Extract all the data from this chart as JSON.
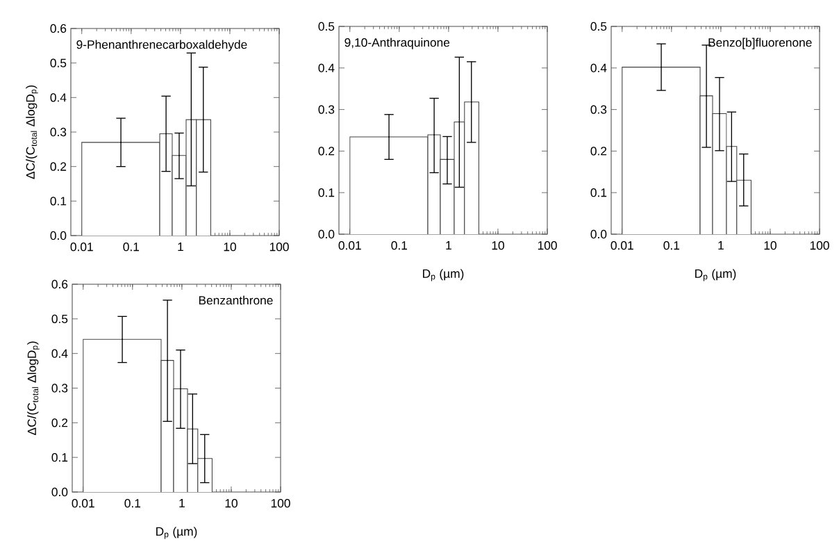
{
  "chart_data": [
    {
      "type": "histogram",
      "title": "9-Phenanthrenecarboxaldehyde",
      "ylabel": "ΔC/(C$_{total}$ ΔlogD$_{p}$)",
      "log": "x",
      "bins": [
        0.01,
        0.38,
        0.68,
        1.3,
        2.1,
        4.1
      ],
      "series": [
        {
          "color": "#404040",
          "values": [
            0.27,
            0.295,
            0.232,
            0.336,
            0.336
          ]
        },
        {
          "type": "scatter",
          "marker": "none",
          "color": "#000000",
          "x": [
            0.062,
            0.51,
            0.94,
            1.65,
            2.9
          ],
          "values": [
            0.27,
            0.295,
            0.232,
            0.336,
            0.336
          ],
          "errors": [
            [
              0.2,
              0.34
            ],
            [
              0.186,
              0.404
            ],
            [
              0.165,
              0.297
            ],
            [
              0.144,
              0.529
            ],
            [
              0.184,
              0.488
            ]
          ]
        }
      ],
      "xlim": [
        0.006,
        100
      ],
      "xticks": [
        0.01,
        0.1,
        1,
        10,
        100
      ],
      "ylim": [
        0,
        0.6
      ],
      "yticks": [
        {
          "value": 0,
          "label": "0.0"
        },
        {
          "value": 0.1,
          "label": "0.1"
        },
        {
          "value": 0.2,
          "label": "0.2"
        },
        {
          "value": 0.3,
          "label": "0.3"
        },
        {
          "value": 0.4,
          "label": "0.4"
        },
        {
          "value": 0.5,
          "label": "0.5"
        },
        {
          "value": 0.6,
          "label": "0.6"
        }
      ]
    },
    {
      "type": "histogram",
      "title": "9,10-Anthraquinone",
      "xlabel": "D$_{p}$ (µm)",
      "log": "x",
      "bins": [
        0.01,
        0.38,
        0.68,
        1.3,
        2.1,
        4.1
      ],
      "series": [
        {
          "color": "#404040",
          "values": [
            0.234,
            0.239,
            0.18,
            0.27,
            0.318
          ]
        },
        {
          "type": "scatter",
          "marker": "none",
          "color": "#000000",
          "x": [
            0.062,
            0.51,
            0.94,
            1.65,
            2.9
          ],
          "values": [
            0.234,
            0.239,
            0.18,
            0.27,
            0.318
          ],
          "errors": [
            [
              0.18,
              0.288
            ],
            [
              0.148,
              0.327
            ],
            [
              0.121,
              0.235
            ],
            [
              0.113,
              0.426
            ],
            [
              0.221,
              0.415
            ]
          ]
        }
      ],
      "xlim": [
        0.006,
        100
      ],
      "xticks": [
        0.01,
        0.1,
        1,
        10,
        100
      ],
      "ylim": [
        0,
        0.5
      ],
      "yticks": [
        {
          "value": 0,
          "label": "0.0"
        },
        {
          "value": 0.1,
          "label": "0.1"
        },
        {
          "value": 0.2,
          "label": "0.2"
        },
        {
          "value": 0.3,
          "label": "0.3"
        },
        {
          "value": 0.4,
          "label": "0.4"
        },
        {
          "value": 0.5,
          "label": "0.5"
        }
      ]
    },
    {
      "type": "histogram",
      "title": "Benzo[b]fluorenone",
      "xlabel": "D$_{p}$ (µm)",
      "log": "x",
      "bins": [
        0.01,
        0.38,
        0.68,
        1.3,
        2.1,
        4.1
      ],
      "series": [
        {
          "color": "#404040",
          "values": [
            0.402,
            0.333,
            0.29,
            0.211,
            0.13
          ]
        },
        {
          "type": "scatter",
          "marker": "none",
          "color": "#000000",
          "x": [
            0.062,
            0.51,
            0.94,
            1.65,
            2.9
          ],
          "values": [
            0.402,
            0.333,
            0.29,
            0.211,
            0.13
          ],
          "errors": [
            [
              0.346,
              0.458
            ],
            [
              0.209,
              0.455
            ],
            [
              0.201,
              0.377
            ],
            [
              0.127,
              0.294
            ],
            [
              0.068,
              0.193
            ]
          ]
        }
      ],
      "xlim": [
        0.006,
        100
      ],
      "xticks": [
        0.01,
        0.1,
        1,
        10,
        100
      ],
      "ylim": [
        0,
        0.5
      ],
      "yticks": [
        {
          "value": 0,
          "label": "0.0"
        },
        {
          "value": 0.1,
          "label": "0.1"
        },
        {
          "value": 0.2,
          "label": "0.2"
        },
        {
          "value": 0.3,
          "label": "0.3"
        },
        {
          "value": 0.4,
          "label": "0.4"
        },
        {
          "value": 0.5,
          "label": "0.5"
        }
      ]
    },
    {
      "type": "histogram",
      "title": "Benzanthrone",
      "xlabel": "D$_{p}$ (µm)",
      "ylabel": "ΔC/(C$_{total}$ ΔlogD$_{p}$)",
      "log": "x",
      "bins": [
        0.01,
        0.38,
        0.68,
        1.3,
        2.1,
        4.1
      ],
      "series": [
        {
          "color": "#404040",
          "values": [
            0.441,
            0.38,
            0.298,
            0.182,
            0.097
          ]
        },
        {
          "type": "scatter",
          "marker": "none",
          "color": "#000000",
          "x": [
            0.062,
            0.51,
            0.94,
            1.65,
            2.9
          ],
          "values": [
            0.441,
            0.38,
            0.298,
            0.182,
            0.097
          ],
          "errors": [
            [
              0.374,
              0.507
            ],
            [
              0.204,
              0.554
            ],
            [
              0.184,
              0.41
            ],
            [
              0.082,
              0.283
            ],
            [
              0.027,
              0.166
            ]
          ]
        }
      ],
      "xlim": [
        0.006,
        100
      ],
      "xticks": [
        0.01,
        0.1,
        1,
        10,
        100
      ],
      "ylim": [
        0,
        0.6
      ],
      "yticks": [
        {
          "value": 0,
          "label": "0.0"
        },
        {
          "value": 0.1,
          "label": "0.1"
        },
        {
          "value": 0.2,
          "label": "0.2"
        },
        {
          "value": 0.3,
          "label": "0.3"
        },
        {
          "value": 0.4,
          "label": "0.4"
        },
        {
          "value": 0.5,
          "label": "0.5"
        },
        {
          "value": 0.6,
          "label": "0.6"
        }
      ]
    }
  ]
}
